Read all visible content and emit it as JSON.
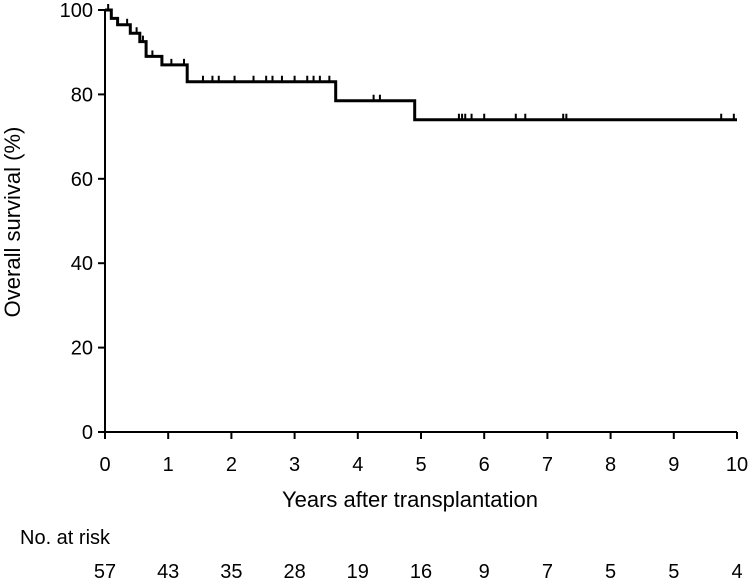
{
  "chart_data": {
    "type": "line",
    "title": "",
    "xlabel": "Years after transplantation",
    "ylabel": "Overall survival (%)",
    "xlim": [
      0,
      10
    ],
    "ylim": [
      0,
      100
    ],
    "x_ticks": [
      "0",
      "1",
      "2",
      "3",
      "4",
      "5",
      "6",
      "7",
      "8",
      "9",
      "10"
    ],
    "y_ticks": [
      "0",
      "20",
      "40",
      "60",
      "80",
      "100"
    ],
    "grid": false,
    "series": [
      {
        "step_points": [
          [
            0,
            100
          ],
          [
            0.1,
            100
          ],
          [
            0.1,
            98
          ],
          [
            0.2,
            98
          ],
          [
            0.2,
            96.5
          ],
          [
            0.4,
            96.5
          ],
          [
            0.4,
            94.5
          ],
          [
            0.55,
            94.5
          ],
          [
            0.55,
            92.5
          ],
          [
            0.65,
            92.5
          ],
          [
            0.65,
            89
          ],
          [
            0.9,
            89
          ],
          [
            0.9,
            87
          ],
          [
            1.3,
            87
          ],
          [
            1.3,
            83
          ],
          [
            3.65,
            83
          ],
          [
            3.65,
            78.5
          ],
          [
            4.9,
            78.5
          ],
          [
            4.9,
            74
          ],
          [
            10,
            74
          ]
        ],
        "censor_marks": [
          [
            0.05,
            100
          ],
          [
            0.35,
            96.5
          ],
          [
            0.5,
            94.5
          ],
          [
            0.6,
            92.5
          ],
          [
            0.75,
            89
          ],
          [
            1.05,
            87
          ],
          [
            1.25,
            87
          ],
          [
            1.55,
            83
          ],
          [
            1.7,
            83
          ],
          [
            1.8,
            83
          ],
          [
            2.05,
            83
          ],
          [
            2.35,
            83
          ],
          [
            2.55,
            83
          ],
          [
            2.65,
            83
          ],
          [
            2.8,
            83
          ],
          [
            3.0,
            83
          ],
          [
            3.2,
            83
          ],
          [
            3.3,
            83
          ],
          [
            3.4,
            83
          ],
          [
            3.55,
            83
          ],
          [
            4.25,
            78.5
          ],
          [
            4.35,
            78.5
          ],
          [
            5.6,
            74
          ],
          [
            5.65,
            74
          ],
          [
            5.7,
            74
          ],
          [
            5.8,
            74
          ],
          [
            6.0,
            74
          ],
          [
            6.5,
            74
          ],
          [
            6.65,
            74
          ],
          [
            7.25,
            74
          ],
          [
            7.3,
            74
          ],
          [
            9.75,
            74
          ],
          [
            9.95,
            74
          ]
        ]
      }
    ],
    "at_risk_label": "No. at risk",
    "at_risk": [
      57,
      43,
      35,
      28,
      19,
      16,
      9,
      7,
      5,
      5,
      4
    ],
    "at_risk_years": [
      0,
      1,
      2,
      3,
      4,
      5,
      6,
      7,
      8,
      9,
      10
    ]
  }
}
